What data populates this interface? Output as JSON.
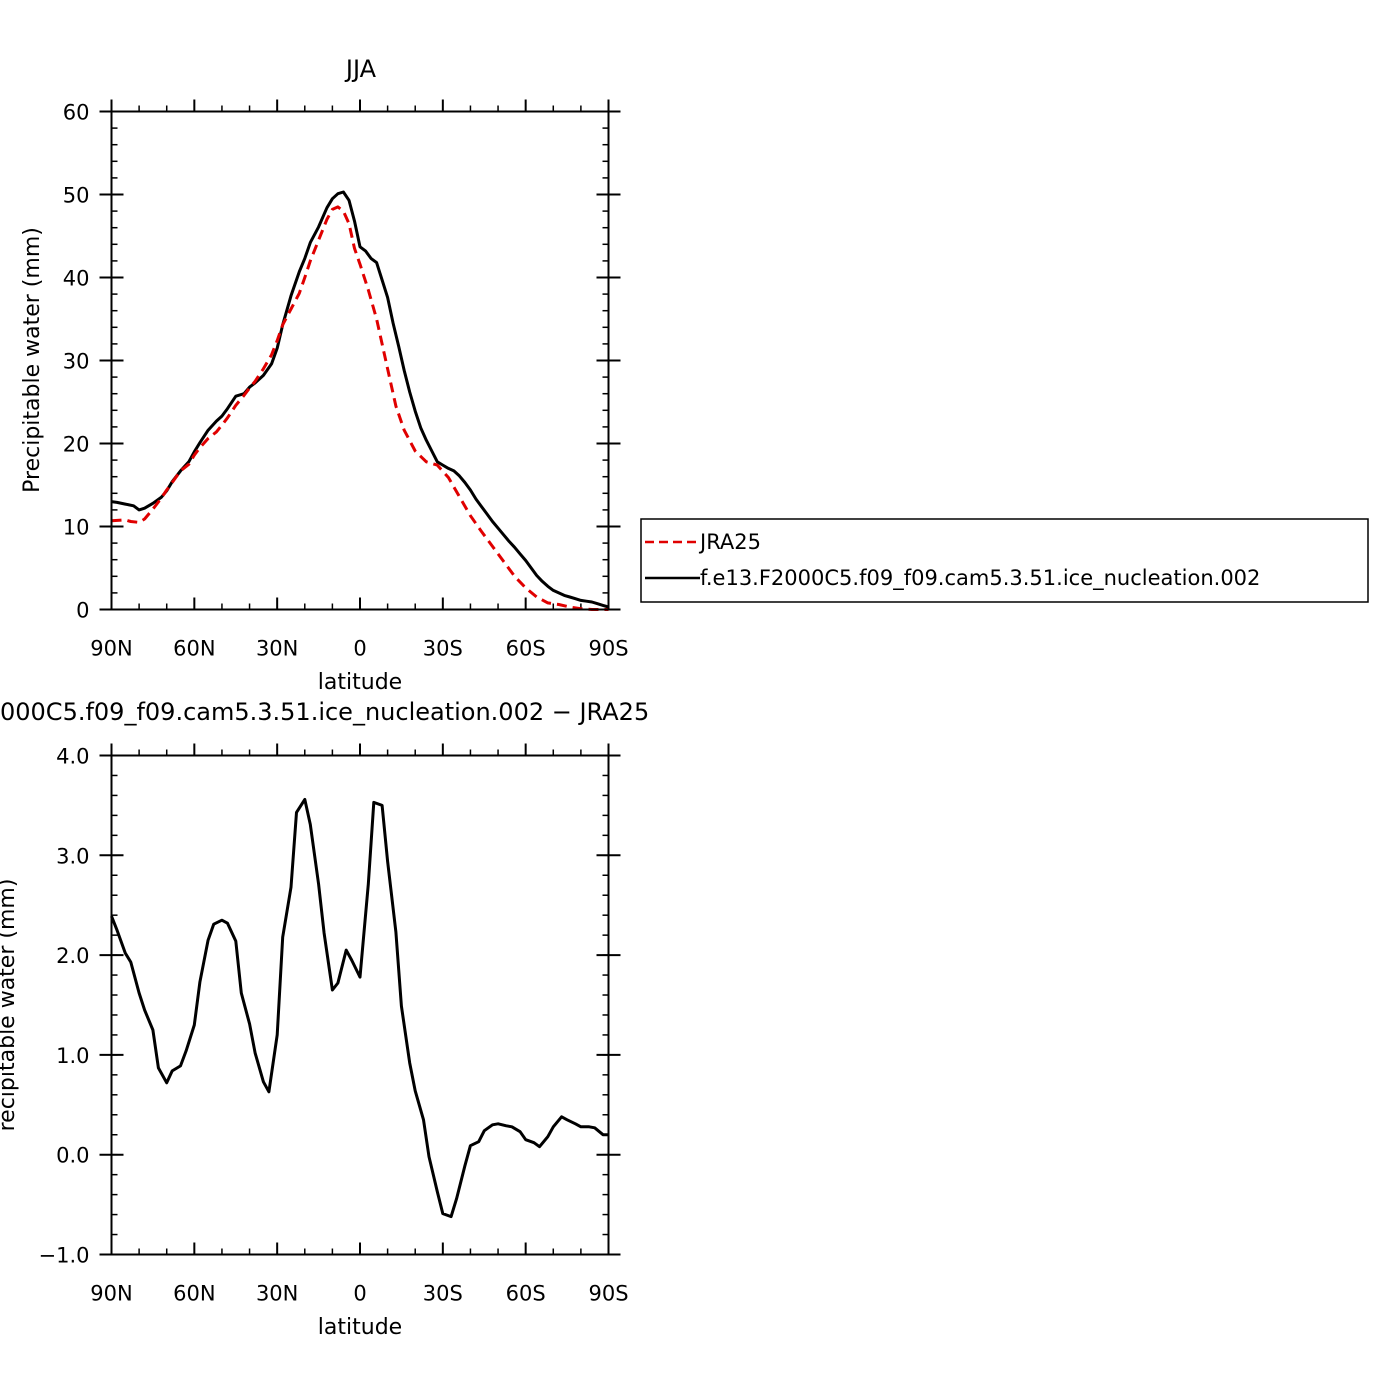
{
  "chart_data": [
    {
      "type": "line",
      "title": "JJA",
      "xlabel": "latitude",
      "ylabel": "Precipitable water (mm)",
      "xlim": [
        90,
        -90
      ],
      "ylim": [
        0,
        60
      ],
      "xticks": [
        90,
        60,
        30,
        0,
        -30,
        -60,
        -90
      ],
      "xtick_labels": [
        "90N",
        "60N",
        "30N",
        "0",
        "30S",
        "60S",
        "90S"
      ],
      "yticks": [
        0,
        10,
        20,
        30,
        40,
        50,
        60
      ],
      "ytick_labels": [
        "0",
        "10",
        "20",
        "30",
        "40",
        "50",
        "60"
      ],
      "legend_position": "right",
      "series": [
        {
          "name": "JRA25",
          "color": "#e00000",
          "dash": "dashed",
          "x": [
            90,
            85,
            83,
            80,
            78,
            75,
            72,
            70,
            68,
            65,
            62,
            60,
            58,
            55,
            52,
            50,
            48,
            45,
            42,
            40,
            38,
            35,
            32,
            30,
            28,
            25,
            22,
            20,
            18,
            15,
            12,
            10,
            8,
            6,
            4,
            2,
            0,
            -3,
            -6,
            -10,
            -13,
            -16,
            -20,
            -24,
            -28,
            -32,
            -36,
            -40,
            -44,
            -48,
            -52,
            -56,
            -60,
            -64,
            -68,
            -72,
            -76,
            -80,
            -84,
            -88,
            -90
          ],
          "y": [
            10.7,
            10.8,
            10.6,
            10.5,
            10.9,
            12.1,
            13.4,
            14.4,
            15.3,
            16.7,
            17.5,
            18.6,
            19.5,
            20.6,
            21.4,
            22.2,
            23.1,
            24.6,
            25.8,
            26.7,
            27.5,
            29.0,
            30.7,
            32.4,
            34.3,
            36.2,
            38.1,
            40.0,
            42.0,
            44.5,
            47.0,
            48.2,
            48.5,
            48.0,
            46.5,
            43.5,
            41.6,
            38.5,
            35.0,
            29.0,
            24.5,
            21.6,
            19.1,
            17.8,
            17.4,
            15.9,
            13.6,
            11.3,
            9.4,
            7.6,
            5.8,
            4.0,
            2.6,
            1.5,
            0.8,
            0.6,
            0.3,
            0.1,
            0.0,
            0.0,
            0.0
          ]
        },
        {
          "name": "f.e13.F2000C5.f09_f09.cam5.3.51.ice_nucleation.002",
          "color": "#000000",
          "dash": "solid",
          "x": [
            90,
            88,
            85,
            82,
            80,
            78,
            75,
            72,
            70,
            68,
            65,
            62,
            60,
            58,
            55,
            52,
            50,
            48,
            45,
            42,
            40,
            38,
            35,
            32,
            30,
            28,
            25,
            22,
            20,
            18,
            15,
            12,
            10,
            8,
            6,
            4,
            2,
            0,
            -2,
            -4,
            -6,
            -8,
            -10,
            -12,
            -14,
            -16,
            -18,
            -20,
            -22,
            -24,
            -26,
            -28,
            -30,
            -32,
            -34,
            -36,
            -38,
            -40,
            -42,
            -44,
            -46,
            -48,
            -50,
            -52,
            -54,
            -56,
            -58,
            -60,
            -62,
            -64,
            -66,
            -68,
            -70,
            -72,
            -74,
            -76,
            -78,
            -80,
            -82,
            -84,
            -86,
            -88,
            -90
          ],
          "y": [
            13.0,
            12.9,
            12.7,
            12.5,
            12.0,
            12.2,
            12.8,
            13.5,
            14.3,
            15.4,
            16.7,
            17.8,
            19.0,
            20.1,
            21.6,
            22.7,
            23.3,
            24.2,
            25.7,
            26.0,
            26.8,
            27.3,
            28.2,
            29.6,
            31.5,
            34.3,
            37.8,
            40.7,
            42.3,
            44.2,
            46.1,
            48.4,
            49.5,
            50.1,
            50.3,
            49.3,
            46.8,
            43.7,
            43.2,
            42.3,
            41.8,
            39.7,
            37.6,
            34.5,
            31.7,
            28.8,
            26.2,
            23.9,
            21.9,
            20.4,
            19.1,
            17.8,
            17.4,
            17.0,
            16.7,
            16.1,
            15.3,
            14.4,
            13.3,
            12.4,
            11.5,
            10.6,
            9.8,
            9.0,
            8.2,
            7.5,
            6.7,
            5.9,
            5.0,
            4.1,
            3.4,
            2.8,
            2.3,
            2.0,
            1.7,
            1.5,
            1.3,
            1.1,
            1.0,
            0.9,
            0.7,
            0.5,
            0.3
          ]
        }
      ]
    },
    {
      "type": "line",
      "title": "000C5.f09_f09.cam5.3.51.ice_nucleation.002 − JRA25",
      "xlabel": "latitude",
      "ylabel": "recipitable water (mm)",
      "xlim": [
        90,
        -90
      ],
      "ylim": [
        -1.0,
        4.0
      ],
      "xticks": [
        90,
        60,
        30,
        0,
        -30,
        -60,
        -90
      ],
      "xtick_labels": [
        "90N",
        "60N",
        "30N",
        "0",
        "30S",
        "60S",
        "90S"
      ],
      "yticks": [
        -1.0,
        0.0,
        1.0,
        2.0,
        3.0,
        4.0
      ],
      "ytick_labels": [
        "−1.0",
        "0.0",
        "1.0",
        "2.0",
        "3.0",
        "4.0"
      ],
      "series": [
        {
          "color": "#000000",
          "dash": "solid",
          "x": [
            90,
            88,
            85,
            83,
            80,
            78,
            75,
            73,
            70,
            68,
            65,
            63,
            60,
            58,
            55,
            53,
            50,
            48,
            45,
            43,
            40,
            38,
            35,
            33,
            30,
            28,
            25,
            23,
            20,
            18,
            15,
            13,
            10,
            8,
            5,
            3,
            0,
            -3,
            -5,
            -8,
            -10,
            -13,
            -15,
            -18,
            -20,
            -23,
            -25,
            -28,
            -30,
            -33,
            -35,
            -38,
            -40,
            -43,
            -45,
            -48,
            -50,
            -53,
            -55,
            -58,
            -60,
            -63,
            -65,
            -68,
            -70,
            -73,
            -75,
            -78,
            -80,
            -83,
            -85,
            -88,
            -90
          ],
          "y": [
            2.39,
            2.25,
            2.02,
            1.93,
            1.62,
            1.45,
            1.25,
            0.87,
            0.72,
            0.84,
            0.89,
            1.04,
            1.3,
            1.73,
            2.15,
            2.31,
            2.35,
            2.32,
            2.14,
            1.62,
            1.31,
            1.02,
            0.73,
            0.63,
            1.2,
            2.18,
            2.68,
            3.43,
            3.56,
            3.31,
            2.71,
            2.22,
            1.65,
            1.72,
            2.05,
            1.95,
            1.78,
            2.71,
            3.53,
            3.5,
            2.94,
            2.23,
            1.49,
            0.92,
            0.64,
            0.35,
            -0.02,
            -0.37,
            -0.59,
            -0.62,
            -0.44,
            -0.11,
            0.09,
            0.13,
            0.24,
            0.3,
            0.31,
            0.29,
            0.28,
            0.23,
            0.15,
            0.12,
            0.08,
            0.18,
            0.28,
            0.38,
            0.35,
            0.31,
            0.28,
            0.28,
            0.27,
            0.2,
            0.2
          ]
        }
      ]
    }
  ]
}
